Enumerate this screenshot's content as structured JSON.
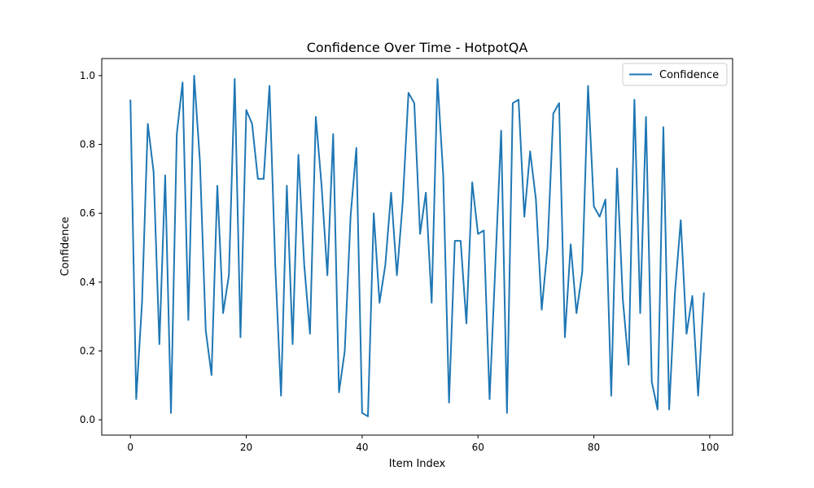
{
  "chart_data": {
    "type": "line",
    "title": "Confidence Over Time - HotpotQA",
    "xlabel": "Item Index",
    "ylabel": "Confidence",
    "xlim": [
      -4.95,
      103.95
    ],
    "ylim": [
      -0.0445,
      1.0495
    ],
    "xticks": [
      0,
      20,
      40,
      60,
      80,
      100
    ],
    "yticks": [
      0.0,
      0.2,
      0.4,
      0.6,
      0.8,
      1.0
    ],
    "grid": false,
    "legend_position": "top-right",
    "series": [
      {
        "name": "Confidence",
        "color": "#1f77b4",
        "x": [
          0,
          1,
          2,
          3,
          4,
          5,
          6,
          7,
          8,
          9,
          10,
          11,
          12,
          13,
          14,
          15,
          16,
          17,
          18,
          19,
          20,
          21,
          22,
          23,
          24,
          25,
          26,
          27,
          28,
          29,
          30,
          31,
          32,
          33,
          34,
          35,
          36,
          37,
          38,
          39,
          40,
          41,
          42,
          43,
          44,
          45,
          46,
          47,
          48,
          49,
          50,
          51,
          52,
          53,
          54,
          55,
          56,
          57,
          58,
          59,
          60,
          61,
          62,
          63,
          64,
          65,
          66,
          67,
          68,
          69,
          70,
          71,
          72,
          73,
          74,
          75,
          76,
          77,
          78,
          79,
          80,
          81,
          82,
          83,
          84,
          85,
          86,
          87,
          88,
          89,
          90,
          91,
          92,
          93,
          94,
          95,
          96,
          97,
          98,
          99
        ],
        "values": [
          0.93,
          0.06,
          0.34,
          0.86,
          0.72,
          0.22,
          0.71,
          0.02,
          0.83,
          0.98,
          0.29,
          1.0,
          0.75,
          0.26,
          0.13,
          0.68,
          0.31,
          0.42,
          0.99,
          0.24,
          0.9,
          0.86,
          0.7,
          0.7,
          0.97,
          0.45,
          0.07,
          0.68,
          0.22,
          0.77,
          0.45,
          0.25,
          0.88,
          0.68,
          0.42,
          0.83,
          0.08,
          0.2,
          0.59,
          0.79,
          0.02,
          0.01,
          0.6,
          0.34,
          0.45,
          0.66,
          0.42,
          0.63,
          0.95,
          0.92,
          0.54,
          0.66,
          0.34,
          0.99,
          0.71,
          0.05,
          0.52,
          0.52,
          0.28,
          0.69,
          0.54,
          0.55,
          0.06,
          0.45,
          0.84,
          0.02,
          0.92,
          0.93,
          0.59,
          0.78,
          0.64,
          0.32,
          0.5,
          0.89,
          0.92,
          0.24,
          0.51,
          0.31,
          0.43,
          0.97,
          0.62,
          0.59,
          0.64,
          0.07,
          0.73,
          0.35,
          0.16,
          0.93,
          0.31,
          0.88,
          0.11,
          0.03,
          0.85,
          0.03,
          0.37,
          0.58,
          0.25,
          0.36,
          0.07,
          0.37
        ]
      }
    ]
  }
}
